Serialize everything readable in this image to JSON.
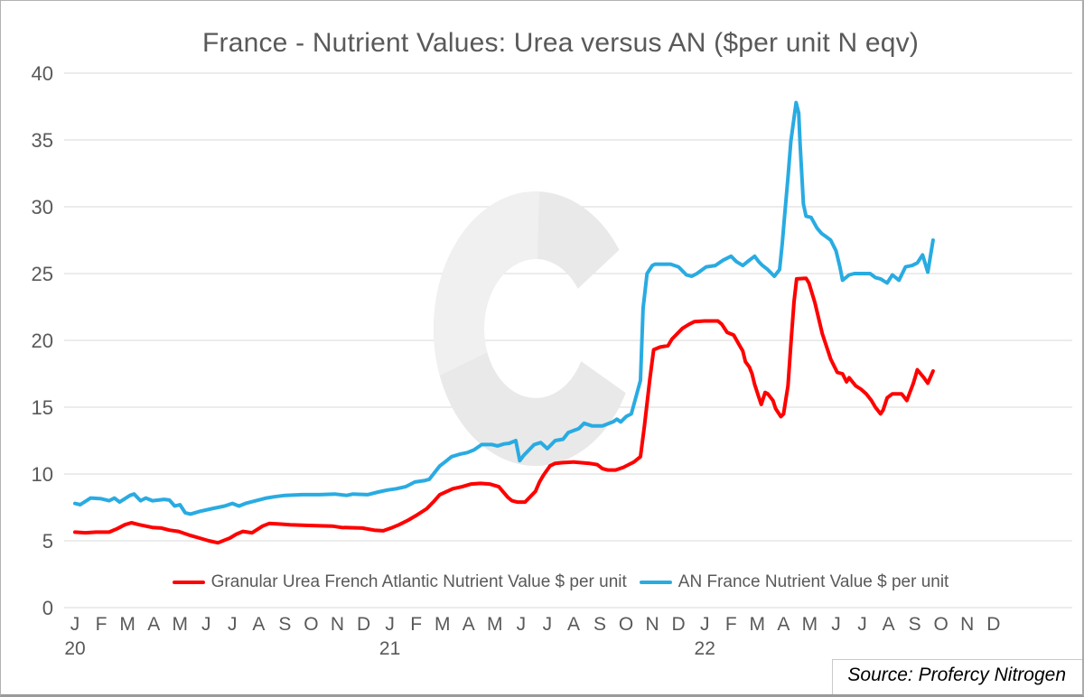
{
  "window_title": "France - Nutrient Values: Urea versus AN ($per unit N eqv)",
  "source_note": "Source: Profercy Nitrogen",
  "legend": [
    {
      "label": "Granular Urea French Atlantic Nutrient Value $ per unit",
      "color": "#fe0000"
    },
    {
      "label": "AN France Nutrient Value $ per unit",
      "color": "#29abe2"
    }
  ],
  "colors": {
    "text": "#595959",
    "grid": "#d9d9d9",
    "watermark": "#e9e9e9",
    "urea_red": "#fe0000",
    "an_blue": "#29abe2"
  },
  "chart_data": {
    "type": "line",
    "title": "France - Nutrient Values: Urea versus AN ($per unit N eqv)",
    "x_axis": {
      "unit": "month_index (0 = Jan 2020, 35 = Dec 2022)",
      "month_labels": [
        "J",
        "F",
        "M",
        "A",
        "M",
        "J",
        "J",
        "A",
        "S",
        "O",
        "N",
        "D",
        "J",
        "F",
        "M",
        "A",
        "M",
        "J",
        "J",
        "A",
        "S",
        "O",
        "N",
        "D",
        "J",
        "F",
        "M",
        "A",
        "M",
        "J",
        "J",
        "A",
        "S",
        "O",
        "N",
        "D"
      ],
      "year_labels": [
        {
          "label": "20",
          "month_index": 0
        },
        {
          "label": "21",
          "month_index": 12
        },
        {
          "label": "22",
          "month_index": 24
        }
      ]
    },
    "y_axis": {
      "min": 0,
      "max": 40,
      "tick_step": 5,
      "ticks": [
        0,
        5,
        10,
        15,
        20,
        25,
        30,
        35,
        40
      ]
    },
    "grid": "horizontal",
    "legend_position": "bottom",
    "series": [
      {
        "name": "Granular Urea French Atlantic Nutrient Value $ per unit",
        "color": "#fe0000",
        "points": [
          [
            0,
            5.65
          ],
          [
            0.4,
            5.6
          ],
          [
            0.8,
            5.65
          ],
          [
            1.3,
            5.65
          ],
          [
            1.6,
            5.9
          ],
          [
            1.9,
            6.2
          ],
          [
            2.15,
            6.35
          ],
          [
            2.45,
            6.2
          ],
          [
            2.95,
            6.0
          ],
          [
            3.3,
            5.95
          ],
          [
            3.6,
            5.8
          ],
          [
            3.95,
            5.7
          ],
          [
            4.4,
            5.4
          ],
          [
            4.75,
            5.2
          ],
          [
            5.1,
            5.0
          ],
          [
            5.45,
            4.85
          ],
          [
            5.9,
            5.2
          ],
          [
            6.15,
            5.5
          ],
          [
            6.4,
            5.7
          ],
          [
            6.75,
            5.6
          ],
          [
            7.15,
            6.1
          ],
          [
            7.4,
            6.3
          ],
          [
            7.85,
            6.25
          ],
          [
            8.2,
            6.2
          ],
          [
            8.9,
            6.15
          ],
          [
            9.8,
            6.1
          ],
          [
            10.15,
            6.0
          ],
          [
            10.95,
            5.95
          ],
          [
            11.4,
            5.8
          ],
          [
            11.75,
            5.75
          ],
          [
            12.1,
            6.0
          ],
          [
            12.35,
            6.2
          ],
          [
            12.7,
            6.55
          ],
          [
            13.05,
            6.95
          ],
          [
            13.4,
            7.4
          ],
          [
            13.7,
            8.0
          ],
          [
            13.9,
            8.45
          ],
          [
            14.4,
            8.9
          ],
          [
            14.75,
            9.05
          ],
          [
            15.1,
            9.25
          ],
          [
            15.45,
            9.3
          ],
          [
            15.8,
            9.25
          ],
          [
            16.15,
            9.05
          ],
          [
            16.3,
            8.7
          ],
          [
            16.5,
            8.25
          ],
          [
            16.65,
            8.0
          ],
          [
            16.85,
            7.9
          ],
          [
            17.15,
            7.9
          ],
          [
            17.35,
            8.3
          ],
          [
            17.55,
            8.7
          ],
          [
            17.7,
            9.4
          ],
          [
            17.85,
            9.9
          ],
          [
            18.1,
            10.6
          ],
          [
            18.3,
            10.8
          ],
          [
            18.6,
            10.85
          ],
          [
            19.0,
            10.9
          ],
          [
            19.6,
            10.8
          ],
          [
            19.9,
            10.7
          ],
          [
            20.1,
            10.4
          ],
          [
            20.3,
            10.3
          ],
          [
            20.6,
            10.3
          ],
          [
            20.9,
            10.5
          ],
          [
            21.1,
            10.7
          ],
          [
            21.3,
            10.9
          ],
          [
            21.55,
            11.3
          ],
          [
            21.7,
            13.6
          ],
          [
            21.9,
            17.0
          ],
          [
            22.05,
            19.3
          ],
          [
            22.3,
            19.5
          ],
          [
            22.6,
            19.6
          ],
          [
            22.75,
            20.1
          ],
          [
            22.9,
            20.4
          ],
          [
            23.15,
            20.9
          ],
          [
            23.4,
            21.2
          ],
          [
            23.6,
            21.4
          ],
          [
            24.0,
            21.45
          ],
          [
            24.5,
            21.45
          ],
          [
            24.65,
            21.2
          ],
          [
            24.85,
            20.6
          ],
          [
            25.1,
            20.4
          ],
          [
            25.3,
            19.7
          ],
          [
            25.45,
            19.2
          ],
          [
            25.55,
            18.4
          ],
          [
            25.7,
            18.0
          ],
          [
            25.8,
            17.5
          ],
          [
            25.9,
            16.7
          ],
          [
            26.05,
            15.8
          ],
          [
            26.15,
            15.2
          ],
          [
            26.3,
            16.1
          ],
          [
            26.4,
            16.0
          ],
          [
            26.6,
            15.5
          ],
          [
            26.7,
            14.9
          ],
          [
            26.9,
            14.3
          ],
          [
            27.0,
            14.5
          ],
          [
            27.17,
            16.6
          ],
          [
            27.28,
            19.7
          ],
          [
            27.4,
            22.9
          ],
          [
            27.5,
            24.6
          ],
          [
            27.86,
            24.65
          ],
          [
            27.97,
            24.3
          ],
          [
            28.2,
            22.8
          ],
          [
            28.48,
            20.5
          ],
          [
            28.8,
            18.6
          ],
          [
            29.05,
            17.6
          ],
          [
            29.25,
            17.5
          ],
          [
            29.4,
            16.9
          ],
          [
            29.5,
            17.2
          ],
          [
            29.75,
            16.6
          ],
          [
            29.95,
            16.35
          ],
          [
            30.15,
            16.0
          ],
          [
            30.35,
            15.5
          ],
          [
            30.5,
            15.0
          ],
          [
            30.7,
            14.5
          ],
          [
            30.8,
            14.8
          ],
          [
            30.95,
            15.7
          ],
          [
            31.15,
            16.0
          ],
          [
            31.5,
            16.0
          ],
          [
            31.7,
            15.5
          ],
          [
            31.95,
            16.8
          ],
          [
            32.1,
            17.8
          ],
          [
            32.35,
            17.2
          ],
          [
            32.5,
            16.8
          ],
          [
            32.7,
            17.7
          ]
        ]
      },
      {
        "name": "AN France Nutrient Value $ per unit",
        "color": "#29abe2",
        "points": [
          [
            0,
            7.8
          ],
          [
            0.2,
            7.7
          ],
          [
            0.6,
            8.2
          ],
          [
            1.0,
            8.15
          ],
          [
            1.3,
            8.0
          ],
          [
            1.5,
            8.2
          ],
          [
            1.7,
            7.9
          ],
          [
            2.1,
            8.4
          ],
          [
            2.25,
            8.5
          ],
          [
            2.5,
            8.0
          ],
          [
            2.7,
            8.2
          ],
          [
            2.95,
            8.0
          ],
          [
            3.4,
            8.1
          ],
          [
            3.6,
            8.05
          ],
          [
            3.8,
            7.6
          ],
          [
            4.0,
            7.7
          ],
          [
            4.2,
            7.1
          ],
          [
            4.4,
            7.0
          ],
          [
            4.75,
            7.2
          ],
          [
            5.2,
            7.4
          ],
          [
            5.7,
            7.6
          ],
          [
            6.0,
            7.8
          ],
          [
            6.25,
            7.6
          ],
          [
            6.5,
            7.8
          ],
          [
            6.9,
            8.0
          ],
          [
            7.3,
            8.2
          ],
          [
            7.6,
            8.3
          ],
          [
            8.0,
            8.4
          ],
          [
            8.65,
            8.45
          ],
          [
            9.3,
            8.45
          ],
          [
            9.9,
            8.5
          ],
          [
            10.35,
            8.4
          ],
          [
            10.6,
            8.5
          ],
          [
            11.15,
            8.45
          ],
          [
            11.55,
            8.65
          ],
          [
            11.9,
            8.8
          ],
          [
            12.25,
            8.9
          ],
          [
            12.6,
            9.05
          ],
          [
            12.95,
            9.4
          ],
          [
            13.3,
            9.5
          ],
          [
            13.5,
            9.6
          ],
          [
            13.7,
            10.1
          ],
          [
            13.9,
            10.6
          ],
          [
            14.1,
            10.9
          ],
          [
            14.35,
            11.3
          ],
          [
            14.7,
            11.5
          ],
          [
            14.95,
            11.6
          ],
          [
            15.2,
            11.8
          ],
          [
            15.5,
            12.2
          ],
          [
            15.9,
            12.2
          ],
          [
            16.1,
            12.1
          ],
          [
            16.35,
            12.25
          ],
          [
            16.55,
            12.3
          ],
          [
            16.8,
            12.5
          ],
          [
            16.95,
            11.0
          ],
          [
            17.1,
            11.4
          ],
          [
            17.3,
            11.8
          ],
          [
            17.5,
            12.2
          ],
          [
            17.75,
            12.35
          ],
          [
            18.0,
            11.9
          ],
          [
            18.3,
            12.5
          ],
          [
            18.6,
            12.6
          ],
          [
            18.8,
            13.1
          ],
          [
            19.2,
            13.4
          ],
          [
            19.4,
            13.8
          ],
          [
            19.7,
            13.6
          ],
          [
            20.1,
            13.6
          ],
          [
            20.5,
            13.9
          ],
          [
            20.65,
            14.1
          ],
          [
            20.8,
            13.9
          ],
          [
            21.0,
            14.3
          ],
          [
            21.2,
            14.5
          ],
          [
            21.55,
            17.0
          ],
          [
            21.65,
            22.4
          ],
          [
            21.8,
            25.0
          ],
          [
            22.0,
            25.6
          ],
          [
            22.1,
            25.7
          ],
          [
            22.7,
            25.7
          ],
          [
            23.0,
            25.5
          ],
          [
            23.3,
            24.9
          ],
          [
            23.5,
            24.8
          ],
          [
            23.7,
            25.0
          ],
          [
            24.05,
            25.5
          ],
          [
            24.4,
            25.6
          ],
          [
            24.7,
            26.0
          ],
          [
            25.0,
            26.3
          ],
          [
            25.2,
            25.9
          ],
          [
            25.45,
            25.6
          ],
          [
            25.7,
            26.0
          ],
          [
            25.9,
            26.3
          ],
          [
            26.05,
            25.9
          ],
          [
            26.2,
            25.6
          ],
          [
            26.4,
            25.3
          ],
          [
            26.65,
            24.8
          ],
          [
            26.85,
            25.3
          ],
          [
            26.95,
            27.2
          ],
          [
            27.05,
            29.5
          ],
          [
            27.17,
            32.2
          ],
          [
            27.28,
            34.9
          ],
          [
            27.48,
            37.8
          ],
          [
            27.58,
            37.0
          ],
          [
            27.63,
            34.7
          ],
          [
            27.76,
            30.2
          ],
          [
            27.86,
            29.3
          ],
          [
            28.05,
            29.2
          ],
          [
            28.28,
            28.4
          ],
          [
            28.45,
            28.0
          ],
          [
            28.6,
            27.8
          ],
          [
            28.8,
            27.5
          ],
          [
            29.0,
            26.7
          ],
          [
            29.15,
            25.5
          ],
          [
            29.25,
            24.5
          ],
          [
            29.5,
            24.9
          ],
          [
            29.7,
            25.0
          ],
          [
            30.3,
            25.0
          ],
          [
            30.5,
            24.7
          ],
          [
            30.7,
            24.6
          ],
          [
            30.95,
            24.3
          ],
          [
            31.15,
            24.9
          ],
          [
            31.4,
            24.5
          ],
          [
            31.65,
            25.5
          ],
          [
            31.9,
            25.6
          ],
          [
            32.1,
            25.8
          ],
          [
            32.3,
            26.4
          ],
          [
            32.5,
            25.1
          ],
          [
            32.7,
            27.5
          ]
        ]
      }
    ]
  }
}
